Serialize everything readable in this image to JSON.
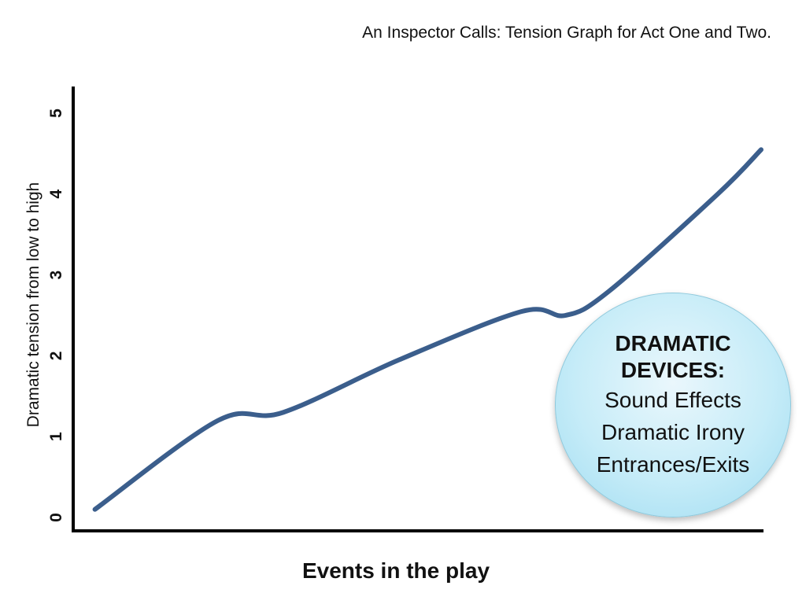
{
  "title": "An Inspector Calls: Tension Graph for Act One and Two.",
  "chart_data": {
    "type": "line",
    "title": "An Inspector Calls: Tension Graph for Act One and Two.",
    "xlabel": "Events in the play",
    "ylabel": "Dramatic tension from low to high",
    "ylim": [
      0,
      5
    ],
    "yticks": [
      "0",
      "1",
      "2",
      "3",
      "4",
      "5"
    ],
    "xlim": [
      0,
      10
    ],
    "grid": false,
    "series": [
      {
        "color": "#3b5e8c",
        "x": [
          0.3,
          2.0,
          2.9,
          4.5,
          6.2,
          6.8,
          7.4,
          8.9,
          9.5
        ],
        "y": [
          0.1,
          1.2,
          1.3,
          1.95,
          2.55,
          2.5,
          2.8,
          4.0,
          4.55
        ]
      }
    ]
  },
  "callout": {
    "heading": "DRAMATIC DEVICES:",
    "items": [
      "Sound Effects",
      "Dramatic Irony",
      "Entrances/Exits"
    ]
  }
}
